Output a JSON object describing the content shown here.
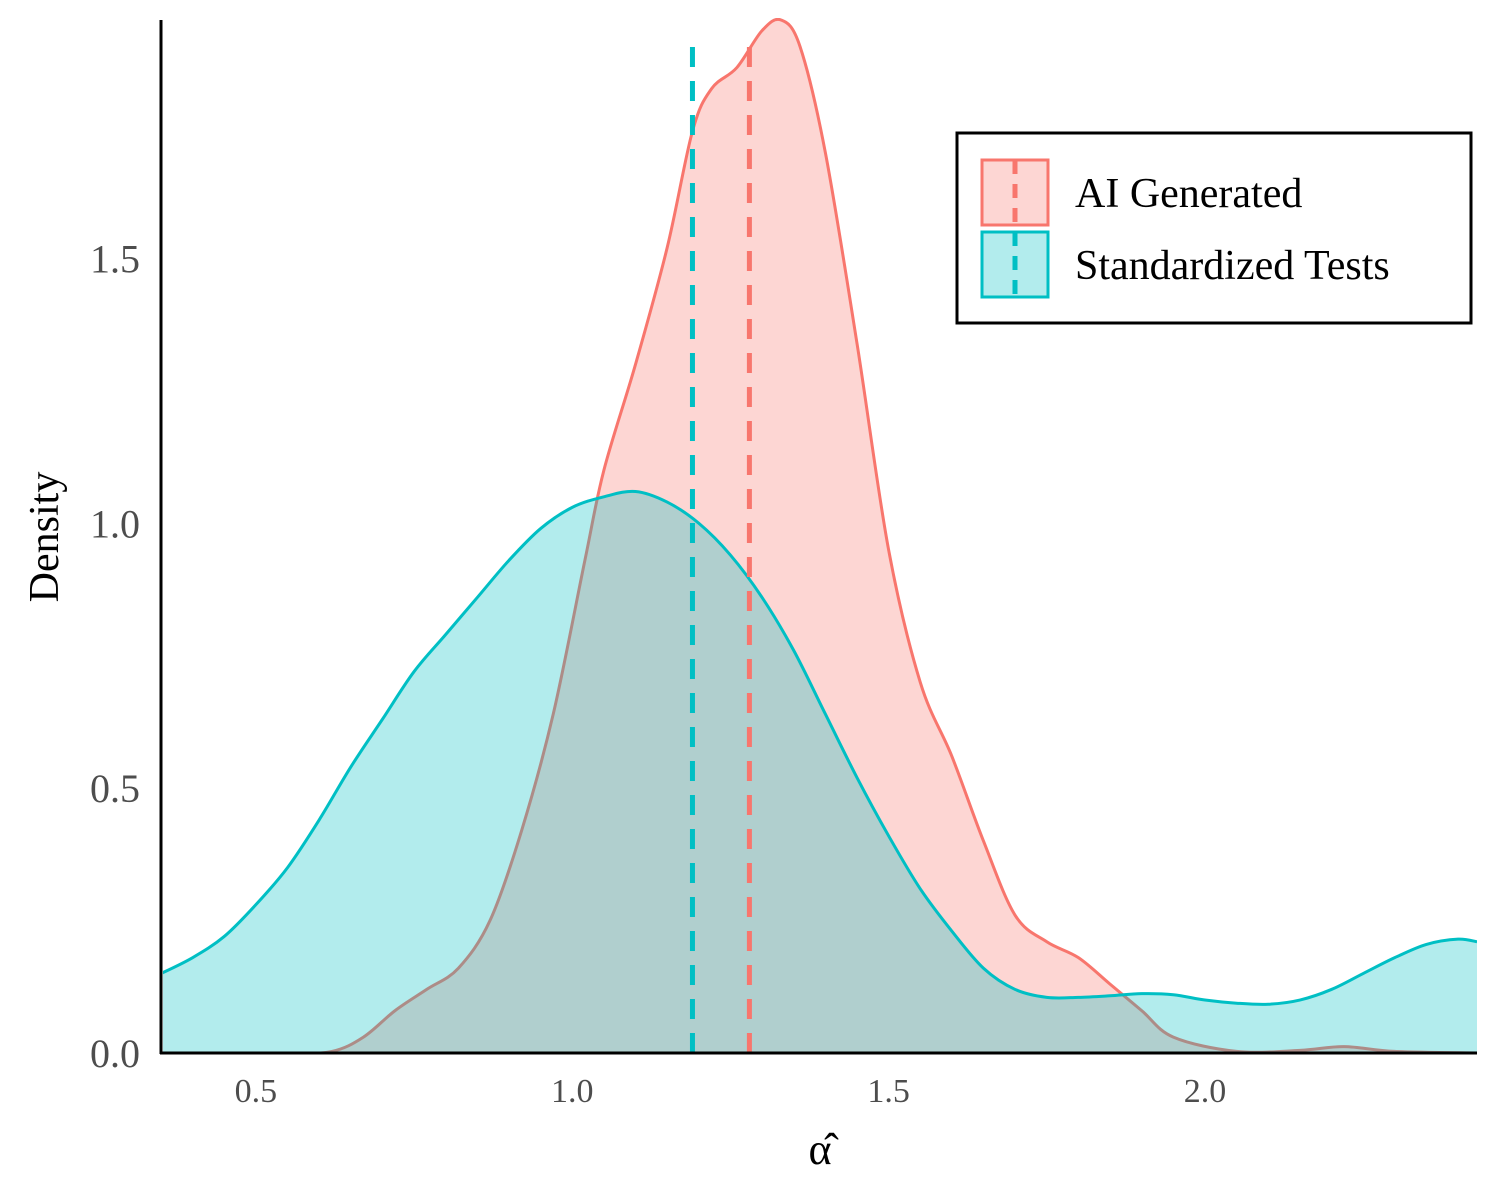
{
  "chart_data": {
    "type": "area",
    "xlabel": "α̂",
    "ylabel": "Density",
    "xlim": [
      0.35,
      2.43
    ],
    "ylim": [
      0,
      1.95
    ],
    "x_ticks": [
      0.5,
      1.0,
      1.5,
      2.0
    ],
    "x_tick_labels": [
      "0.5",
      "1.0",
      "1.5",
      "2.0"
    ],
    "y_ticks": [
      0.0,
      0.5,
      1.0,
      1.5
    ],
    "y_tick_labels": [
      "0.0",
      "0.5",
      "1.0",
      "1.5"
    ],
    "grid": false,
    "legend_position": "top-right",
    "series": [
      {
        "name": "AI Generated",
        "color": "#F8766D",
        "fill": "#F8766D",
        "fill_opacity": 0.3,
        "mean": 1.28,
        "points": [
          [
            0.35,
            0.0
          ],
          [
            0.55,
            0.0
          ],
          [
            0.62,
            0.003
          ],
          [
            0.67,
            0.03
          ],
          [
            0.72,
            0.08
          ],
          [
            0.77,
            0.12
          ],
          [
            0.82,
            0.16
          ],
          [
            0.87,
            0.25
          ],
          [
            0.92,
            0.42
          ],
          [
            0.97,
            0.64
          ],
          [
            1.02,
            0.93
          ],
          [
            1.05,
            1.1
          ],
          [
            1.1,
            1.3
          ],
          [
            1.15,
            1.52
          ],
          [
            1.19,
            1.74
          ],
          [
            1.22,
            1.82
          ],
          [
            1.26,
            1.86
          ],
          [
            1.3,
            1.93
          ],
          [
            1.33,
            1.95
          ],
          [
            1.36,
            1.9
          ],
          [
            1.4,
            1.7
          ],
          [
            1.45,
            1.34
          ],
          [
            1.5,
            0.95
          ],
          [
            1.55,
            0.7
          ],
          [
            1.6,
            0.56
          ],
          [
            1.65,
            0.4
          ],
          [
            1.7,
            0.26
          ],
          [
            1.75,
            0.21
          ],
          [
            1.8,
            0.18
          ],
          [
            1.85,
            0.13
          ],
          [
            1.9,
            0.08
          ],
          [
            1.95,
            0.03
          ],
          [
            2.05,
            0.003
          ],
          [
            2.15,
            0.005
          ],
          [
            2.22,
            0.012
          ],
          [
            2.3,
            0.003
          ],
          [
            2.43,
            0.0
          ]
        ]
      },
      {
        "name": "Standardized Tests",
        "color": "#00BFC4",
        "fill": "#00BFC4",
        "fill_opacity": 0.3,
        "mean": 1.19,
        "points": [
          [
            0.35,
            0.15
          ],
          [
            0.4,
            0.18
          ],
          [
            0.45,
            0.22
          ],
          [
            0.5,
            0.28
          ],
          [
            0.55,
            0.35
          ],
          [
            0.6,
            0.44
          ],
          [
            0.65,
            0.54
          ],
          [
            0.7,
            0.63
          ],
          [
            0.75,
            0.72
          ],
          [
            0.8,
            0.79
          ],
          [
            0.85,
            0.86
          ],
          [
            0.9,
            0.93
          ],
          [
            0.95,
            0.99
          ],
          [
            1.0,
            1.03
          ],
          [
            1.05,
            1.05
          ],
          [
            1.1,
            1.06
          ],
          [
            1.15,
            1.04
          ],
          [
            1.2,
            1.0
          ],
          [
            1.25,
            0.94
          ],
          [
            1.3,
            0.86
          ],
          [
            1.35,
            0.76
          ],
          [
            1.4,
            0.64
          ],
          [
            1.45,
            0.52
          ],
          [
            1.5,
            0.41
          ],
          [
            1.55,
            0.31
          ],
          [
            1.6,
            0.23
          ],
          [
            1.65,
            0.16
          ],
          [
            1.7,
            0.12
          ],
          [
            1.75,
            0.105
          ],
          [
            1.8,
            0.105
          ],
          [
            1.85,
            0.108
          ],
          [
            1.9,
            0.112
          ],
          [
            1.95,
            0.11
          ],
          [
            2.0,
            0.1
          ],
          [
            2.05,
            0.094
          ],
          [
            2.1,
            0.092
          ],
          [
            2.15,
            0.1
          ],
          [
            2.2,
            0.12
          ],
          [
            2.25,
            0.15
          ],
          [
            2.3,
            0.18
          ],
          [
            2.35,
            0.205
          ],
          [
            2.4,
            0.215
          ],
          [
            2.43,
            0.21
          ]
        ]
      }
    ]
  }
}
